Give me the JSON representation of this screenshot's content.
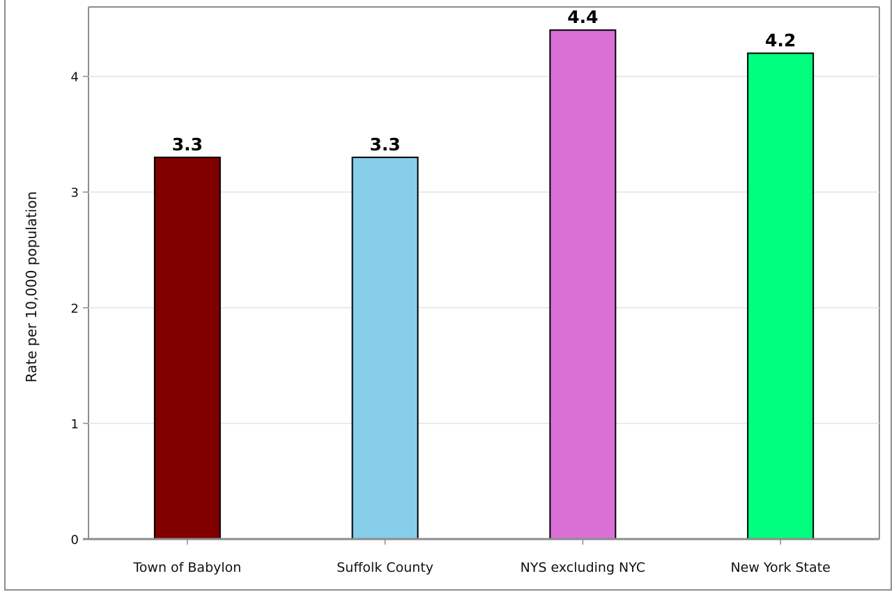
{
  "chart_data": {
    "type": "bar",
    "title": "",
    "xlabel": "",
    "ylabel": "Rate per 10,000 population",
    "categories": [
      "Town of Babylon",
      "Suffolk County",
      "NYS excluding NYC",
      "New York State"
    ],
    "values": [
      3.3,
      3.3,
      4.4,
      4.2
    ],
    "value_labels": [
      "3.3",
      "3.3",
      "4.4",
      "4.2"
    ],
    "colors": [
      "#800000",
      "#87ceeb",
      "#da70d6",
      "#00ff7f"
    ],
    "ylim": [
      0,
      4.6
    ],
    "yticks": [
      0,
      1,
      2,
      3,
      4
    ],
    "ytick_labels": [
      "0",
      "1",
      "2",
      "3",
      "4"
    ],
    "grid": true,
    "legend": "none"
  }
}
